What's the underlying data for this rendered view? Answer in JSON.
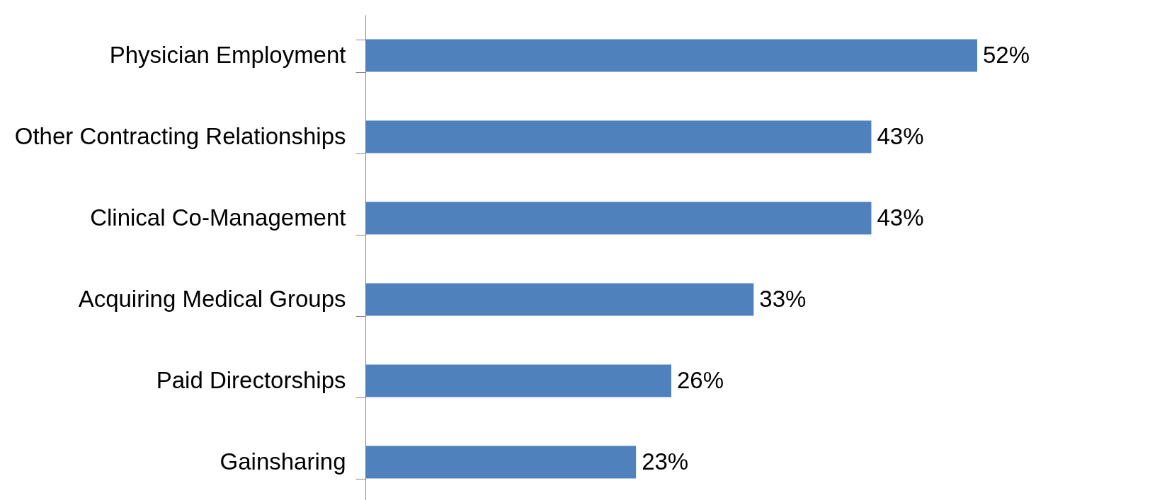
{
  "chart_data": {
    "type": "bar",
    "orientation": "horizontal",
    "categories": [
      "Physician Employment",
      "Other Contracting Relationships",
      "Clinical Co-Management",
      "Acquiring Medical Groups",
      "Paid Directorships",
      "Gainsharing"
    ],
    "series": [
      {
        "color": "#4f81bd",
        "values": [
          52,
          43,
          43,
          33,
          26,
          23
        ],
        "value_labels": [
          "52%",
          "43%",
          "43%",
          "33%",
          "26%",
          "23%"
        ]
      }
    ]
  }
}
